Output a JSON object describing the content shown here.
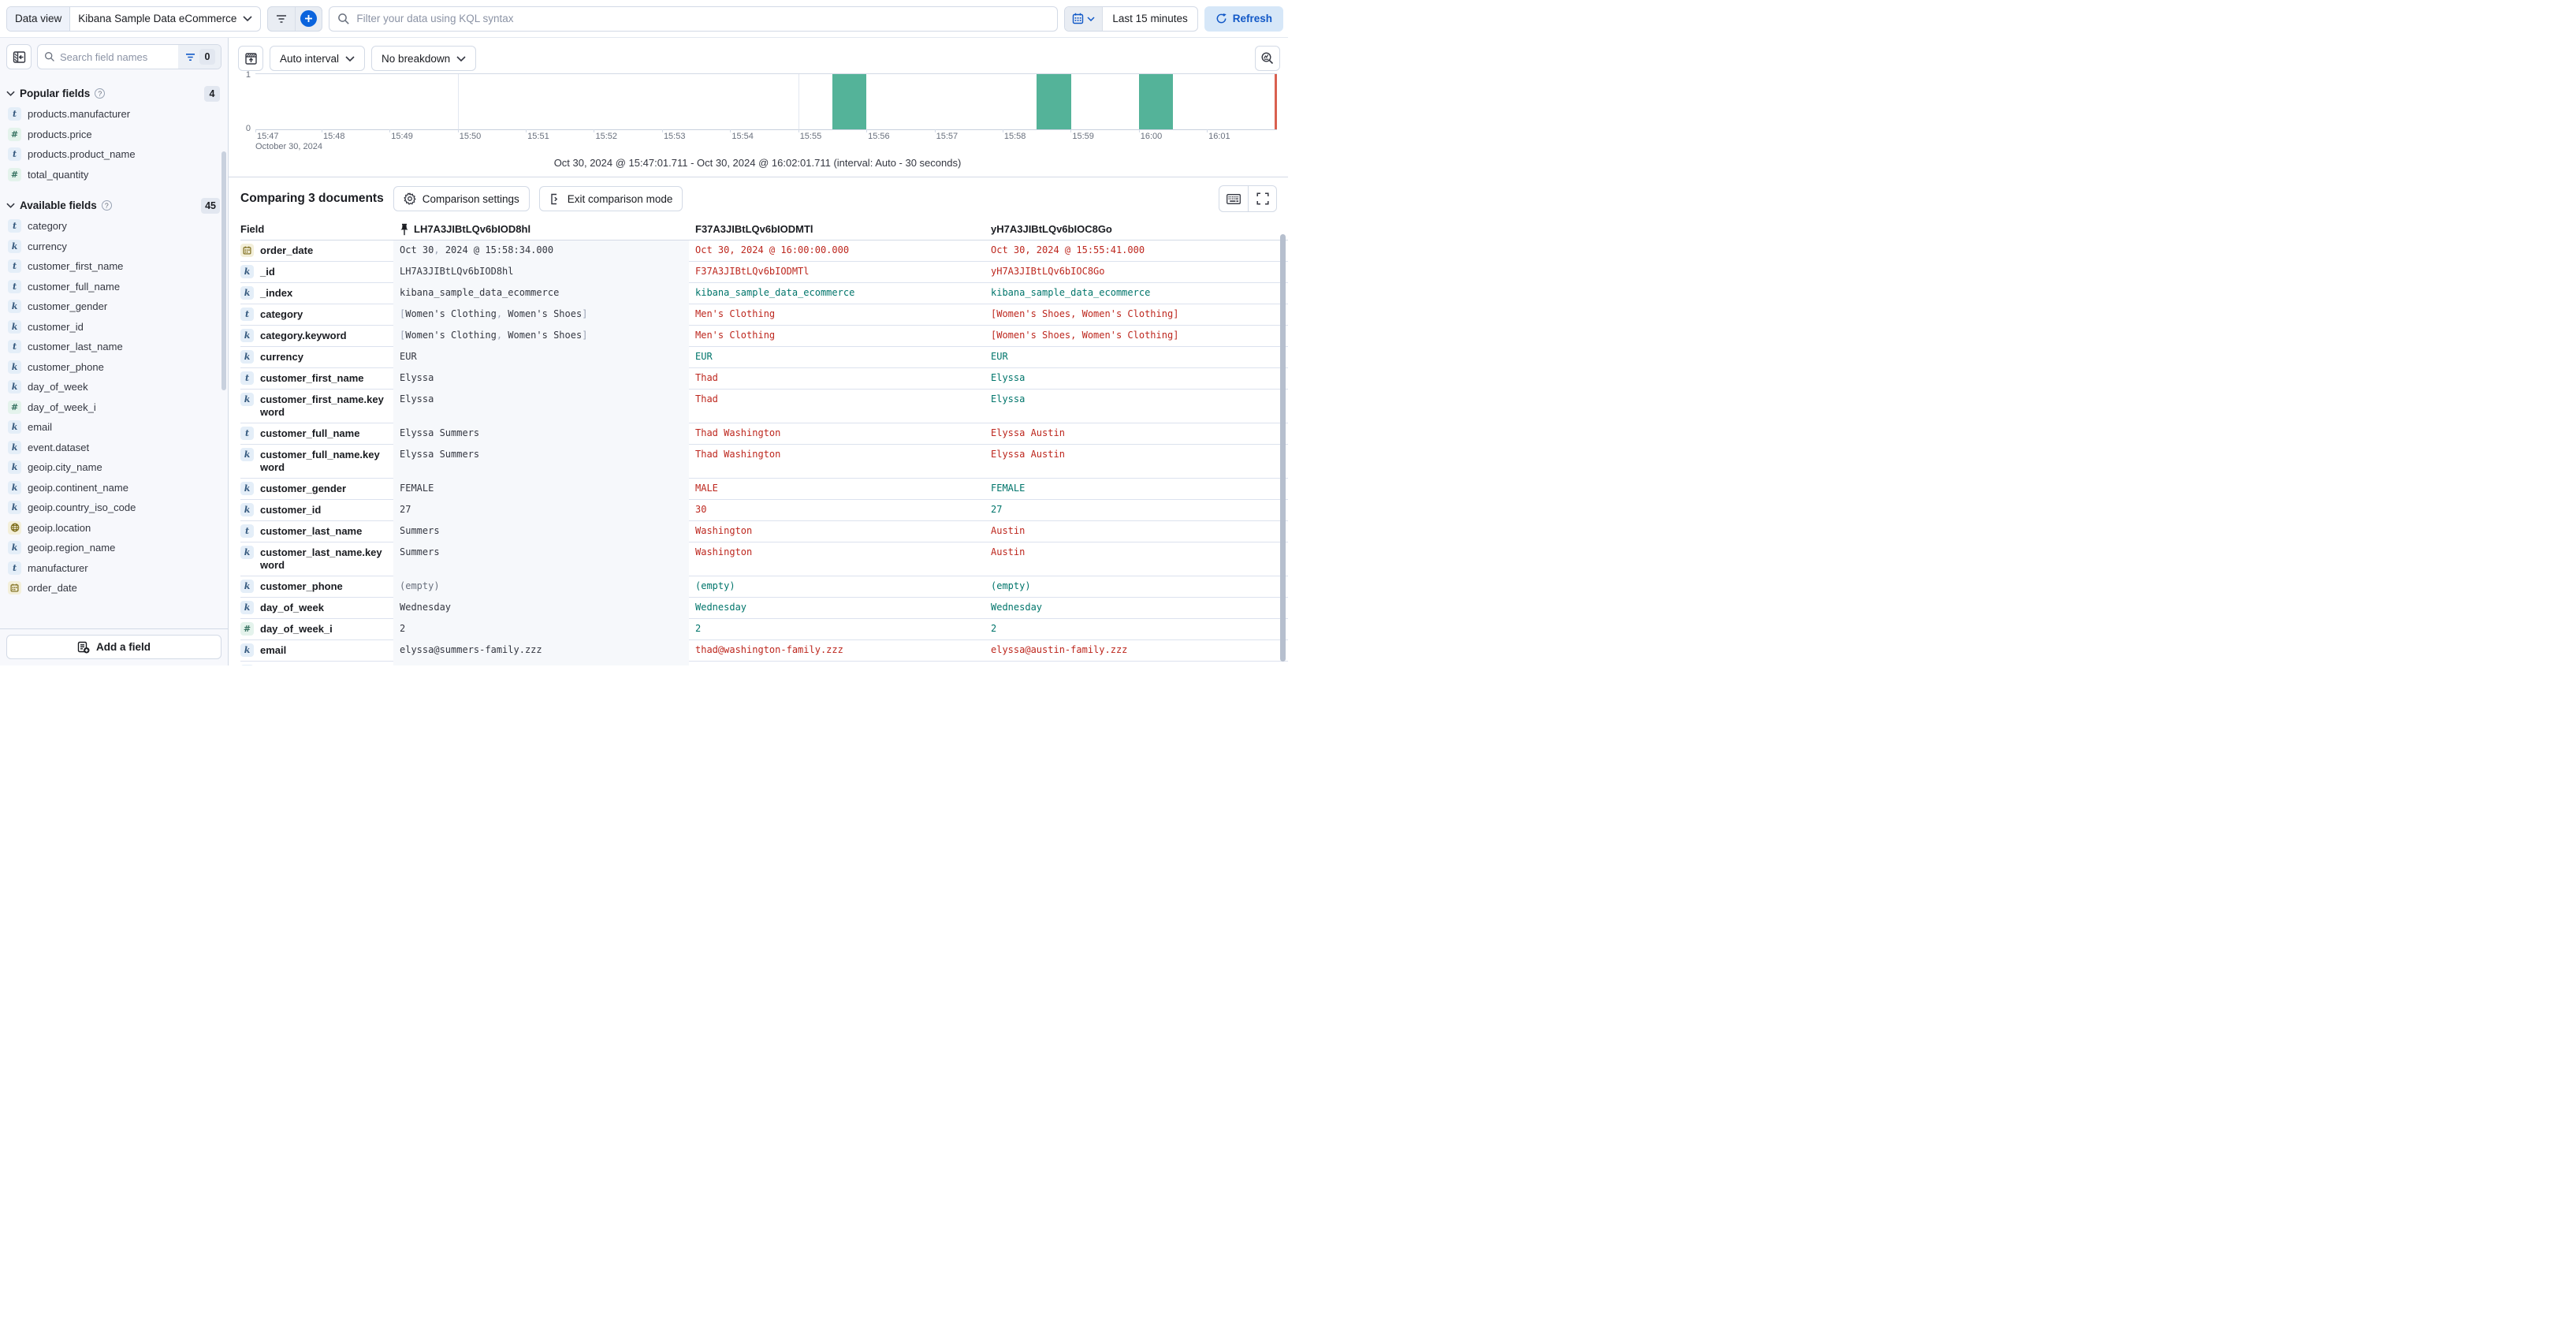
{
  "colors": {
    "accent_blue": "#0B64DD",
    "primary_text_blue": "#1158C7",
    "diff_red": "#BD271E",
    "match_teal": "#00756B",
    "bar_teal": "#54B399",
    "now_marker_red": "#D9604F",
    "base_column_bg": "#F6F8FB",
    "sidebar_bg": "#F7F8FC"
  },
  "topbar": {
    "data_view_label": "Data view",
    "data_view_value": "Kibana Sample Data eCommerce",
    "search_placeholder": "Filter your data using KQL syntax",
    "time_range": "Last 15 minutes",
    "refresh_label": "Refresh"
  },
  "sidebar": {
    "search_placeholder": "Search field names",
    "filter_count": "0",
    "add_field_label": "Add a field",
    "sections": [
      {
        "label": "Popular fields",
        "count": "4",
        "fields": [
          {
            "icon": "t",
            "name": "products.manufacturer"
          },
          {
            "icon": "num",
            "name": "products.price"
          },
          {
            "icon": "t",
            "name": "products.product_name"
          },
          {
            "icon": "num",
            "name": "total_quantity"
          }
        ]
      },
      {
        "label": "Available fields",
        "count": "45",
        "fields": [
          {
            "icon": "t",
            "name": "category"
          },
          {
            "icon": "k",
            "name": "currency"
          },
          {
            "icon": "t",
            "name": "customer_first_name"
          },
          {
            "icon": "t",
            "name": "customer_full_name"
          },
          {
            "icon": "k",
            "name": "customer_gender"
          },
          {
            "icon": "k",
            "name": "customer_id"
          },
          {
            "icon": "t",
            "name": "customer_last_name"
          },
          {
            "icon": "k",
            "name": "customer_phone"
          },
          {
            "icon": "k",
            "name": "day_of_week"
          },
          {
            "icon": "num",
            "name": "day_of_week_i"
          },
          {
            "icon": "k",
            "name": "email"
          },
          {
            "icon": "k",
            "name": "event.dataset"
          },
          {
            "icon": "k",
            "name": "geoip.city_name"
          },
          {
            "icon": "k",
            "name": "geoip.continent_name"
          },
          {
            "icon": "k",
            "name": "geoip.country_iso_code"
          },
          {
            "icon": "geo",
            "name": "geoip.location"
          },
          {
            "icon": "k",
            "name": "geoip.region_name"
          },
          {
            "icon": "t",
            "name": "manufacturer"
          },
          {
            "icon": "date",
            "name": "order_date"
          }
        ]
      }
    ]
  },
  "chart_toolbar": {
    "interval_label": "Auto interval",
    "breakdown_label": "No breakdown"
  },
  "chart_data": {
    "type": "bar",
    "title": "Oct 30, 2024 @ 15:47:01.711 - Oct 30, 2024 @ 16:02:01.711 (interval: Auto - 30 seconds)",
    "x_date_label": "October 30, 2024",
    "ylabel": "",
    "xlabel": "",
    "ylim": [
      0,
      1
    ],
    "y_tick_labels": [
      "1",
      "0"
    ],
    "x_ticks": [
      {
        "label": "15:47",
        "pct": 0
      },
      {
        "label": "15:48",
        "pct": 6.48
      },
      {
        "label": "15:49",
        "pct": 13.14
      },
      {
        "label": "15:50",
        "pct": 19.81
      },
      {
        "label": "15:51",
        "pct": 26.48
      },
      {
        "label": "15:52",
        "pct": 33.14
      },
      {
        "label": "15:53",
        "pct": 39.81
      },
      {
        "label": "15:54",
        "pct": 46.48
      },
      {
        "label": "15:55",
        "pct": 53.14
      },
      {
        "label": "15:56",
        "pct": 59.81
      },
      {
        "label": "15:57",
        "pct": 66.48
      },
      {
        "label": "15:58",
        "pct": 73.14
      },
      {
        "label": "15:59",
        "pct": 79.81
      },
      {
        "label": "16:00",
        "pct": 86.48
      },
      {
        "label": "16:01",
        "pct": 93.14
      }
    ],
    "gridline_pcts": [
      19.81,
      53.14,
      86.48
    ],
    "bar_width_pct": 3.33,
    "bars": [
      {
        "time": "15:55:30",
        "value": 1,
        "pct": 56.5
      },
      {
        "time": "15:58:30",
        "value": 1,
        "pct": 76.5
      },
      {
        "time": "16:00:00",
        "value": 1,
        "pct": 86.5
      }
    ]
  },
  "comparison": {
    "title": "Comparing 3 documents",
    "settings_label": "Comparison settings",
    "exit_label": "Exit comparison mode",
    "table": {
      "field_header": "Field",
      "pinned_doc_id": "LH7A3JIBtLQv6bIOD8hl",
      "doc_ids": [
        "F37A3JIBtLQv6bIODMTl",
        "yH7A3JIBtLQv6bIOC8Go"
      ],
      "rows": [
        {
          "icon": "date",
          "name": "order_date",
          "base": "Oct 30, 2024 @ 15:58:34.000",
          "cells": [
            {
              "t": "Oct 30, 2024 @ 16:00:00.000",
              "s": "diff"
            },
            {
              "t": "Oct 30, 2024 @ 15:55:41.000",
              "s": "diff"
            }
          ]
        },
        {
          "icon": "k",
          "name": "_id",
          "base": "LH7A3JIBtLQv6bIOD8hl",
          "cells": [
            {
              "t": "F37A3JIBtLQv6bIODMTl",
              "s": "diff"
            },
            {
              "t": "yH7A3JIBtLQv6bIOC8Go",
              "s": "diff"
            }
          ]
        },
        {
          "icon": "k",
          "name": "_index",
          "base": "kibana_sample_data_ecommerce",
          "cells": [
            {
              "t": "kibana_sample_data_ecommerce",
              "s": "match"
            },
            {
              "t": "kibana_sample_data_ecommerce",
              "s": "match"
            }
          ]
        },
        {
          "icon": "t",
          "name": "category",
          "base": "[Women's Clothing, Women's Shoes]",
          "cells": [
            {
              "t": "Men's Clothing",
              "s": "diff"
            },
            {
              "t": "[Women's Shoes, Women's Clothing]",
              "s": "diff"
            }
          ]
        },
        {
          "icon": "k",
          "name": "category.keyword",
          "base": "[Women's Clothing, Women's Shoes]",
          "cells": [
            {
              "t": "Men's Clothing",
              "s": "diff"
            },
            {
              "t": "[Women's Shoes, Women's Clothing]",
              "s": "diff"
            }
          ]
        },
        {
          "icon": "k",
          "name": "currency",
          "base": "EUR",
          "cells": [
            {
              "t": "EUR",
              "s": "match"
            },
            {
              "t": "EUR",
              "s": "match"
            }
          ]
        },
        {
          "icon": "t",
          "name": "customer_first_name",
          "base": "Elyssa",
          "cells": [
            {
              "t": "Thad",
              "s": "diff"
            },
            {
              "t": "Elyssa",
              "s": "match"
            }
          ]
        },
        {
          "icon": "k",
          "name": "customer_first_name.keyword",
          "base": "Elyssa",
          "cells": [
            {
              "t": "Thad",
              "s": "diff"
            },
            {
              "t": "Elyssa",
              "s": "match"
            }
          ]
        },
        {
          "icon": "t",
          "name": "customer_full_name",
          "base": "Elyssa Summers",
          "cells": [
            {
              "t": "Thad Washington",
              "s": "diff"
            },
            {
              "t": "Elyssa Austin",
              "s": "diff"
            }
          ]
        },
        {
          "icon": "k",
          "name": "customer_full_name.keyword",
          "base": "Elyssa Summers",
          "cells": [
            {
              "t": "Thad Washington",
              "s": "diff"
            },
            {
              "t": "Elyssa Austin",
              "s": "diff"
            }
          ]
        },
        {
          "icon": "k",
          "name": "customer_gender",
          "base": "FEMALE",
          "cells": [
            {
              "t": "MALE",
              "s": "diff"
            },
            {
              "t": "FEMALE",
              "s": "match"
            }
          ]
        },
        {
          "icon": "k",
          "name": "customer_id",
          "base": "27",
          "cells": [
            {
              "t": "30",
              "s": "diff"
            },
            {
              "t": "27",
              "s": "match"
            }
          ]
        },
        {
          "icon": "t",
          "name": "customer_last_name",
          "base": "Summers",
          "cells": [
            {
              "t": "Washington",
              "s": "diff"
            },
            {
              "t": "Austin",
              "s": "diff"
            }
          ]
        },
        {
          "icon": "k",
          "name": "customer_last_name.keyword",
          "base": "Summers",
          "cells": [
            {
              "t": "Washington",
              "s": "diff"
            },
            {
              "t": "Austin",
              "s": "diff"
            }
          ]
        },
        {
          "icon": "k",
          "name": "customer_phone",
          "base": "(empty)",
          "cells": [
            {
              "t": "(empty)",
              "s": "match"
            },
            {
              "t": "(empty)",
              "s": "match"
            }
          ]
        },
        {
          "icon": "k",
          "name": "day_of_week",
          "base": "Wednesday",
          "cells": [
            {
              "t": "Wednesday",
              "s": "match"
            },
            {
              "t": "Wednesday",
              "s": "match"
            }
          ]
        },
        {
          "icon": "num",
          "name": "day_of_week_i",
          "base": "2",
          "cells": [
            {
              "t": "2",
              "s": "match"
            },
            {
              "t": "2",
              "s": "match"
            }
          ]
        },
        {
          "icon": "k",
          "name": "email",
          "base": "elyssa@summers-family.zzz",
          "cells": [
            {
              "t": "thad@washington-family.zzz",
              "s": "diff"
            },
            {
              "t": "elyssa@austin-family.zzz",
              "s": "diff"
            }
          ]
        },
        {
          "icon": "k",
          "name": "",
          "base": "",
          "cells": [
            {
              "t": "",
              "s": "match"
            },
            {
              "t": "",
              "s": "match"
            }
          ]
        }
      ]
    }
  }
}
